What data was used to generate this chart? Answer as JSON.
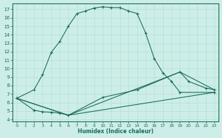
{
  "xlabel": "Humidex (Indice chaleur)",
  "bg_color": "#cdeee8",
  "line_color": "#1a6b5a",
  "grid_color": "#b5ddd6",
  "xlim": [
    -0.5,
    23.5
  ],
  "ylim": [
    3.8,
    17.7
  ],
  "xticks": [
    0,
    1,
    2,
    3,
    4,
    5,
    6,
    7,
    8,
    9,
    10,
    11,
    12,
    13,
    14,
    15,
    16,
    17,
    18,
    19,
    20,
    21,
    22,
    23
  ],
  "yticks": [
    4,
    5,
    6,
    7,
    8,
    9,
    10,
    11,
    12,
    13,
    14,
    15,
    16,
    17
  ],
  "curve1_x": [
    0,
    2,
    3,
    4,
    5,
    6,
    7,
    8,
    9,
    10,
    11,
    12,
    13,
    14,
    15,
    16,
    17,
    18,
    19,
    23
  ],
  "curve1_y": [
    6.5,
    7.5,
    9.3,
    11.9,
    13.2,
    15.0,
    16.5,
    16.8,
    17.15,
    17.3,
    17.2,
    17.2,
    16.8,
    16.5,
    14.2,
    11.2,
    9.5,
    8.5,
    7.2,
    7.2
  ],
  "curve2_x": [
    0,
    2,
    3,
    4,
    5,
    6,
    10,
    14,
    19,
    20,
    22,
    23
  ],
  "curve2_y": [
    6.5,
    5.1,
    4.9,
    4.85,
    4.75,
    4.5,
    6.6,
    7.5,
    9.6,
    8.5,
    7.7,
    7.5
  ],
  "line3_x": [
    0,
    6,
    19,
    23
  ],
  "line3_y": [
    6.5,
    4.5,
    9.6,
    7.5
  ],
  "line4_x": [
    0,
    6,
    23
  ],
  "line4_y": [
    6.5,
    4.5,
    7.2
  ]
}
